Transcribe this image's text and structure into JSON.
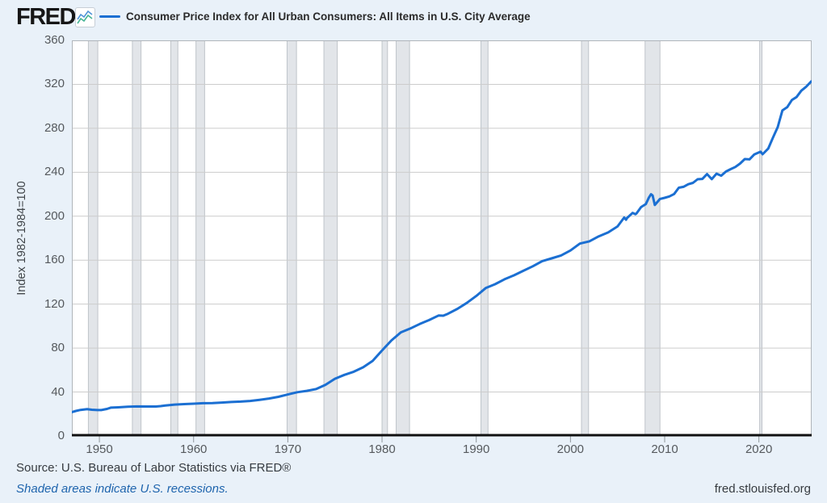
{
  "header": {
    "logo_text": "FRED",
    "logo_registered": "®",
    "legend_label": "Consumer Price Index for All Urban Consumers: All Items in U.S. City Average"
  },
  "chart_data": {
    "type": "line",
    "title": "Consumer Price Index for All Urban Consumers: All Items in U.S. City Average",
    "xlabel": "",
    "ylabel": "Index 1982-1984=100",
    "x_range": [
      1947.08,
      2025.6
    ],
    "ylim": [
      0,
      360
    ],
    "x_ticks": [
      1950,
      1960,
      1970,
      1980,
      1990,
      2000,
      2010,
      2020
    ],
    "y_ticks": [
      0,
      40,
      80,
      120,
      160,
      200,
      240,
      280,
      320,
      360
    ],
    "grid": "horizontal-only",
    "legend_position": "top",
    "shaded_regions_meaning": "U.S. recessions (NBER)",
    "recessions": [
      [
        1948.83,
        1949.83
      ],
      [
        1953.5,
        1954.42
      ],
      [
        1957.58,
        1958.33
      ],
      [
        1960.25,
        1961.17
      ],
      [
        1969.92,
        1970.92
      ],
      [
        1973.83,
        1975.25
      ],
      [
        1980.0,
        1980.58
      ],
      [
        1981.5,
        1982.92
      ],
      [
        1990.5,
        1991.25
      ],
      [
        2001.17,
        2001.92
      ],
      [
        2007.92,
        2009.5
      ],
      [
        2020.08,
        2020.33
      ]
    ],
    "series": [
      {
        "name": "Consumer Price Index for All Urban Consumers: All Items in U.S. City Average",
        "units": "Index 1982-1984=100",
        "points": [
          [
            1947.0,
            21.5
          ],
          [
            1947.5,
            22.8
          ],
          [
            1948.0,
            23.7
          ],
          [
            1948.7,
            24.4
          ],
          [
            1949.2,
            23.9
          ],
          [
            1949.8,
            23.6
          ],
          [
            1950.2,
            23.6
          ],
          [
            1950.8,
            24.6
          ],
          [
            1951.2,
            25.8
          ],
          [
            1952.0,
            26.1
          ],
          [
            1953.0,
            26.6
          ],
          [
            1954.0,
            26.9
          ],
          [
            1955.0,
            26.8
          ],
          [
            1956.0,
            26.8
          ],
          [
            1956.5,
            27.2
          ],
          [
            1957.0,
            27.7
          ],
          [
            1958.0,
            28.6
          ],
          [
            1959.0,
            29.0
          ],
          [
            1960.0,
            29.4
          ],
          [
            1961.0,
            29.8
          ],
          [
            1962.0,
            30.0
          ],
          [
            1963.0,
            30.4
          ],
          [
            1964.0,
            30.9
          ],
          [
            1965.0,
            31.3
          ],
          [
            1966.0,
            31.9
          ],
          [
            1967.0,
            32.9
          ],
          [
            1968.0,
            34.1
          ],
          [
            1969.0,
            35.6
          ],
          [
            1970.0,
            37.8
          ],
          [
            1971.0,
            39.8
          ],
          [
            1972.0,
            41.1
          ],
          [
            1973.0,
            42.7
          ],
          [
            1974.0,
            46.6
          ],
          [
            1975.0,
            52.1
          ],
          [
            1976.0,
            55.6
          ],
          [
            1977.0,
            58.5
          ],
          [
            1978.0,
            62.5
          ],
          [
            1979.0,
            68.3
          ],
          [
            1980.0,
            77.8
          ],
          [
            1981.0,
            87.0
          ],
          [
            1982.0,
            94.3
          ],
          [
            1983.0,
            97.8
          ],
          [
            1984.0,
            101.9
          ],
          [
            1985.0,
            105.5
          ],
          [
            1986.0,
            109.6
          ],
          [
            1986.5,
            109.5
          ],
          [
            1987.0,
            111.2
          ],
          [
            1988.0,
            115.7
          ],
          [
            1989.0,
            121.1
          ],
          [
            1990.0,
            127.4
          ],
          [
            1991.0,
            134.6
          ],
          [
            1992.0,
            138.1
          ],
          [
            1993.0,
            142.6
          ],
          [
            1994.0,
            146.2
          ],
          [
            1995.0,
            150.3
          ],
          [
            1996.0,
            154.4
          ],
          [
            1997.0,
            159.1
          ],
          [
            1998.0,
            161.6
          ],
          [
            1999.0,
            164.3
          ],
          [
            2000.0,
            168.8
          ],
          [
            2001.0,
            175.1
          ],
          [
            2002.0,
            177.1
          ],
          [
            2003.0,
            181.7
          ],
          [
            2004.0,
            185.2
          ],
          [
            2005.0,
            190.7
          ],
          [
            2005.7,
            198.8
          ],
          [
            2005.9,
            196.8
          ],
          [
            2006.0,
            198.3
          ],
          [
            2006.6,
            203.0
          ],
          [
            2006.9,
            201.8
          ],
          [
            2007.0,
            202.4
          ],
          [
            2007.5,
            208.3
          ],
          [
            2008.0,
            211.1
          ],
          [
            2008.3,
            216.6
          ],
          [
            2008.55,
            219.96
          ],
          [
            2008.72,
            218.8
          ],
          [
            2008.95,
            210.2
          ],
          [
            2009.2,
            212.7
          ],
          [
            2009.5,
            215.7
          ],
          [
            2010.0,
            216.7
          ],
          [
            2010.5,
            218.0
          ],
          [
            2011.0,
            220.2
          ],
          [
            2011.5,
            225.9
          ],
          [
            2012.0,
            226.7
          ],
          [
            2012.5,
            229.1
          ],
          [
            2013.0,
            230.3
          ],
          [
            2013.5,
            233.6
          ],
          [
            2014.0,
            233.9
          ],
          [
            2014.5,
            238.3
          ],
          [
            2015.0,
            233.7
          ],
          [
            2015.5,
            238.7
          ],
          [
            2016.0,
            236.9
          ],
          [
            2016.5,
            240.6
          ],
          [
            2017.0,
            242.8
          ],
          [
            2017.5,
            244.8
          ],
          [
            2018.0,
            247.9
          ],
          [
            2018.5,
            252.0
          ],
          [
            2019.0,
            251.7
          ],
          [
            2019.5,
            256.1
          ],
          [
            2020.0,
            258.0
          ],
          [
            2020.17,
            258.7
          ],
          [
            2020.4,
            256.4
          ],
          [
            2021.0,
            261.6
          ],
          [
            2021.5,
            271.7
          ],
          [
            2022.0,
            281.1
          ],
          [
            2022.5,
            296.3
          ],
          [
            2023.0,
            299.2
          ],
          [
            2023.5,
            305.7
          ],
          [
            2024.0,
            308.4
          ],
          [
            2024.5,
            314.2
          ],
          [
            2025.0,
            317.7
          ],
          [
            2025.55,
            322.6
          ]
        ]
      }
    ]
  },
  "footer": {
    "source": "Source: U.S. Bureau of Labor Statistics via FRED®",
    "note": "Shaded areas indicate U.S. recessions.",
    "site": "fred.stlouisfed.org"
  },
  "colors": {
    "background": "#e9f1f9",
    "plot_background": "#ffffff",
    "line": "#1b6fd2",
    "grid": "#cccccc",
    "plot_border": "#b0b5ba",
    "recession_fill": "#e2e5e9",
    "recession_edge": "#bfc4ca",
    "axis": "#111111",
    "tick_mark": "#8f969c",
    "tick_label": "#55595d",
    "note_link": "#1e64ad",
    "sparkline_blue": "#4f93d8",
    "sparkline_green": "#45b394"
  }
}
